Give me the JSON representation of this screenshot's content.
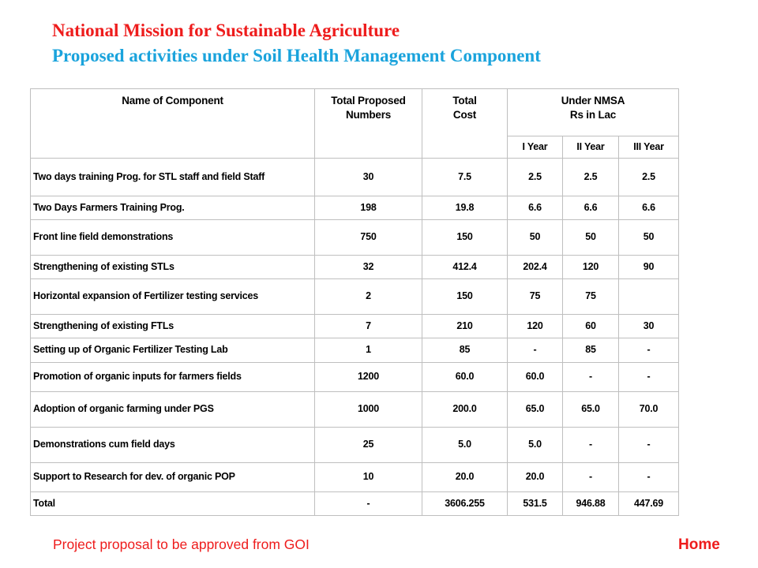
{
  "header": {
    "title": "National Mission for Sustainable Agriculture",
    "subtitle": "Proposed activities under Soil Health Management Component"
  },
  "table": {
    "headers": {
      "name": "Name of Component",
      "total_numbers_line1": "Total Proposed",
      "total_numbers_line2": "Numbers",
      "total_cost_line1": "Total",
      "total_cost_line2": "Cost",
      "under_nmsa_line1": "Under NMSA",
      "under_nmsa_line2": "Rs in Lac",
      "year1": "I Year",
      "year2": "II Year",
      "year3": "III Year"
    },
    "rows": [
      {
        "name": "Two days training Prog. for STL staff and field Staff",
        "numbers": "30",
        "cost": "7.5",
        "y1": "2.5",
        "y2": "2.5",
        "y3": "2.5"
      },
      {
        "name": "Two Days Farmers Training Prog.",
        "numbers": "198",
        "cost": "19.8",
        "y1": "6.6",
        "y2": "6.6",
        "y3": "6.6"
      },
      {
        "name": "Front line field demonstrations",
        "numbers": "750",
        "cost": "150",
        "y1": "50",
        "y2": "50",
        "y3": "50"
      },
      {
        "name": "Strengthening of existing STLs",
        "numbers": "32",
        "cost": "412.4",
        "y1": "202.4",
        "y2": "120",
        "y3": "90"
      },
      {
        "name": "Horizontal expansion of Fertilizer testing services",
        "numbers": "2",
        "cost": "150",
        "y1": "75",
        "y2": "75",
        "y3": ""
      },
      {
        "name": "Strengthening of existing FTLs",
        "numbers": "7",
        "cost": "210",
        "y1": "120",
        "y2": "60",
        "y3": "30"
      },
      {
        "name": "Setting up of Organic Fertilizer Testing Lab",
        "numbers": "1",
        "cost": "85",
        "y1": "-",
        "y2": "85",
        "y3": "-"
      },
      {
        "name": "Promotion of organic inputs for farmers fields",
        "numbers": "1200",
        "cost": "60.0",
        "y1": "60.0",
        "y2": "-",
        "y3": "-"
      },
      {
        "name": "Adoption of organic farming under PGS",
        "numbers": "1000",
        "cost": "200.0",
        "y1": "65.0",
        "y2": "65.0",
        "y3": "70.0"
      },
      {
        "name": "Demonstrations cum field days",
        "numbers": "25",
        "cost": "5.0",
        "y1": "5.0",
        "y2": "-",
        "y3": "-"
      },
      {
        "name": "Support to Research for dev. of organic POP",
        "numbers": "10",
        "cost": "20.0",
        "y1": "20.0",
        "y2": "-",
        "y3": "-"
      },
      {
        "name": "Total",
        "numbers": "-",
        "cost": "3606.255",
        "y1": "531.5",
        "y2": "946.88",
        "y3": "447.69"
      }
    ]
  },
  "footer": {
    "note": "Project proposal to be approved from GOI",
    "home_link": "Home"
  },
  "colors": {
    "title": "#ee1c1c",
    "subtitle": "#1aa3dc",
    "footer": "#ee1c1c",
    "table_border": "#bfbfbf"
  }
}
